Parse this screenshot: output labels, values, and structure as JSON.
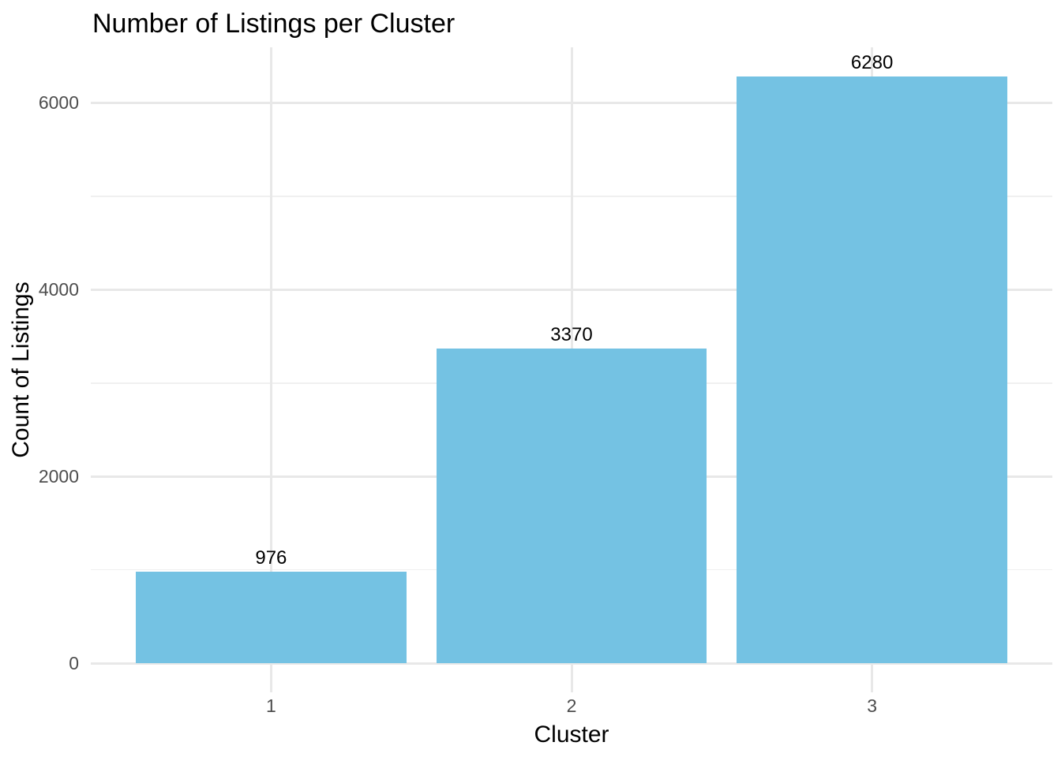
{
  "chart_data": {
    "type": "bar",
    "title": "Number of Listings per Cluster",
    "xlabel": "Cluster",
    "ylabel": "Count of Listings",
    "categories": [
      "1",
      "2",
      "3"
    ],
    "values": [
      976,
      3370,
      6280
    ],
    "bar_value_labels": [
      "976",
      "3370",
      "6280"
    ],
    "y_ticks": [
      0,
      2000,
      4000,
      6000
    ],
    "y_tick_labels": [
      "0",
      "2000",
      "4000",
      "6000"
    ],
    "y_minor_ticks": [
      1000,
      3000,
      5000
    ],
    "ylim": [
      0,
      6594
    ],
    "bar_color": "#74C2E3",
    "background_color": "#FFFFFF",
    "major_grid_color": "#E8E8E8",
    "minor_grid_color": "#F0F0F0",
    "tick_label_color": "#4D4D4D",
    "text_color": "#000000",
    "grid": "on",
    "legend_position": "none"
  }
}
